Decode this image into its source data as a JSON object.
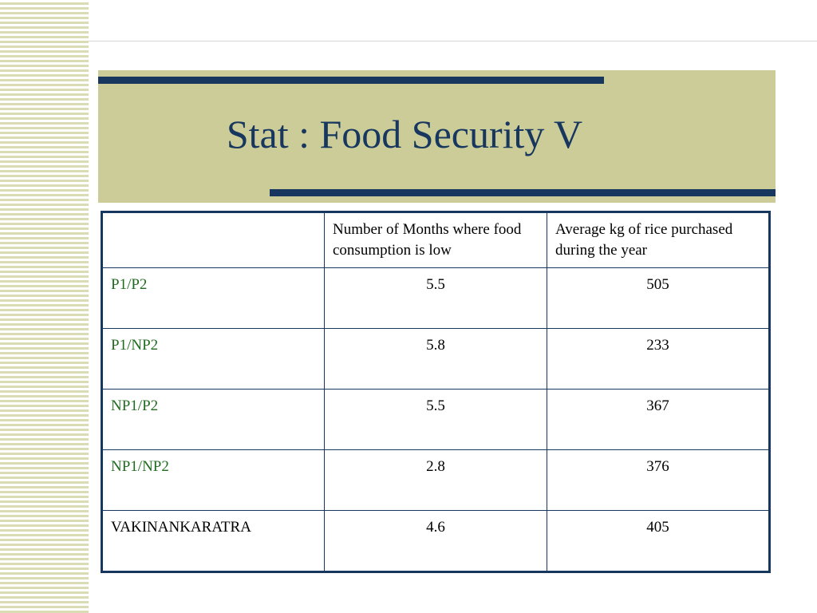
{
  "slide": {
    "title": "Stat : Food Security V"
  },
  "table": {
    "headers": [
      "",
      "Number of Months where food consumption is low",
      "Average kg of rice purchased during the year"
    ],
    "rows": [
      {
        "label": "P1/P2",
        "months": "5.5",
        "rice": "505"
      },
      {
        "label": "P1/NP2",
        "months": "5.8",
        "rice": "233"
      },
      {
        "label": "NP1/P2",
        "months": "5.5",
        "rice": "367"
      },
      {
        "label": "NP1/NP2",
        "months": "2.8",
        "rice": "376"
      },
      {
        "label": "VAKINANKARATRA",
        "months": "4.6",
        "rice": "405"
      }
    ]
  },
  "colors": {
    "accent_navy": "#17375e",
    "title_band": "#cccc99",
    "stripe": "#d9dcb4",
    "row_label_green": "#1f6b1f"
  }
}
